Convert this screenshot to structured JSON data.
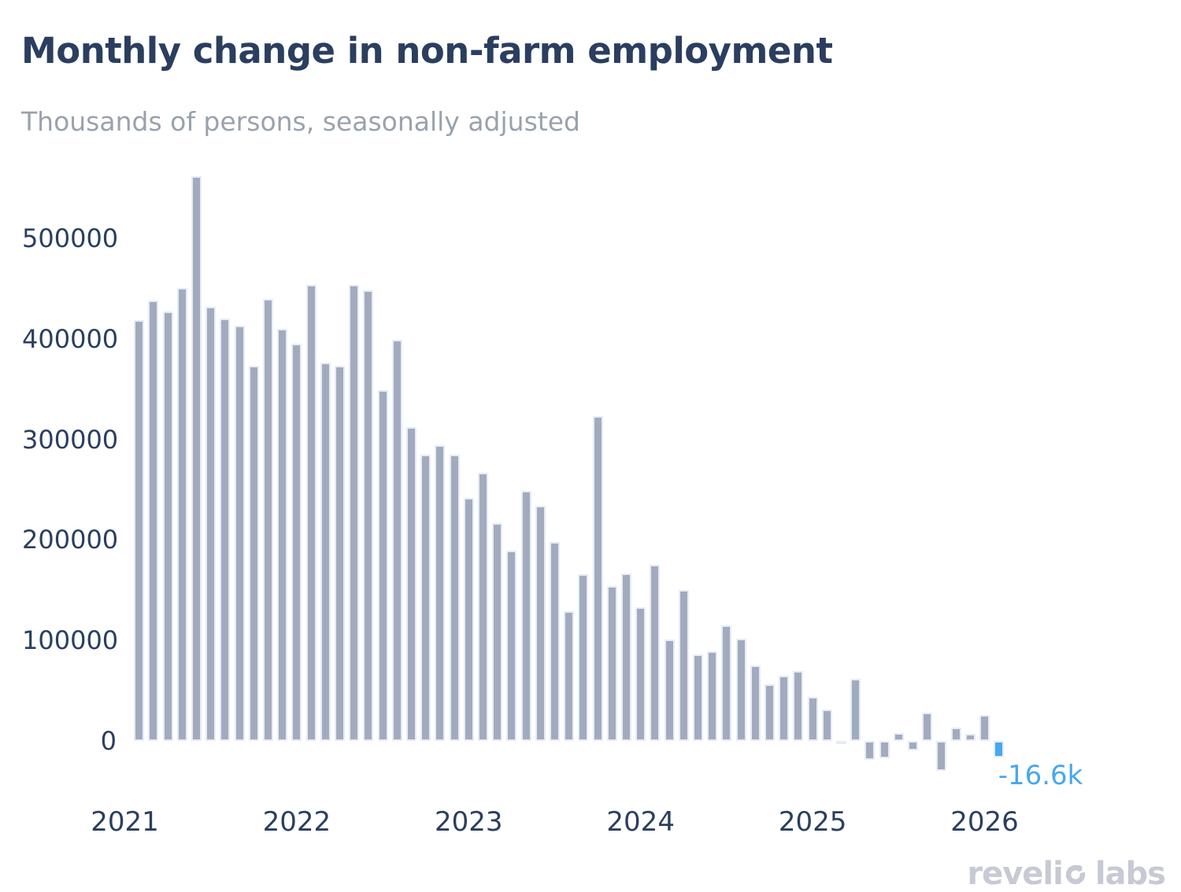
{
  "header": {
    "title": "Monthly change in non-farm employment",
    "subtitle": "Thousands of persons, seasonally adjusted"
  },
  "chart_data": {
    "type": "bar",
    "title": "Monthly change in non-farm employment",
    "subtitle": "Thousands of persons, seasonally adjusted",
    "xlabel": "",
    "ylabel": "",
    "grid": false,
    "legend": false,
    "ylim": [
      -45000,
      575000
    ],
    "yticks": [
      0,
      100000,
      200000,
      300000,
      400000,
      500000
    ],
    "xticks": [
      "2021",
      "2022",
      "2023",
      "2024",
      "2025",
      "2026"
    ],
    "x": [
      "2021-02",
      "2021-03",
      "2021-04",
      "2021-05",
      "2021-06",
      "2021-07",
      "2021-08",
      "2021-09",
      "2021-10",
      "2021-11",
      "2021-12",
      "2022-01",
      "2022-02",
      "2022-03",
      "2022-04",
      "2022-05",
      "2022-06",
      "2022-07",
      "2022-08",
      "2022-09",
      "2022-10",
      "2022-11",
      "2022-12",
      "2023-01",
      "2023-02",
      "2023-03",
      "2023-04",
      "2023-05",
      "2023-06",
      "2023-07",
      "2023-08",
      "2023-09",
      "2023-10",
      "2023-11",
      "2023-12",
      "2024-01",
      "2024-02",
      "2024-03",
      "2024-04",
      "2024-05",
      "2024-06",
      "2024-07",
      "2024-08",
      "2024-09",
      "2024-10",
      "2024-11",
      "2024-12",
      "2025-01",
      "2025-02",
      "2025-03",
      "2025-04",
      "2025-05",
      "2025-06",
      "2025-07",
      "2025-08",
      "2025-09",
      "2025-10",
      "2025-11",
      "2025-12",
      "2026-01",
      "2026-02"
    ],
    "values": [
      419000,
      438000,
      427000,
      451000,
      562000,
      432000,
      420000,
      413000,
      373000,
      440000,
      410000,
      395000,
      454000,
      376000,
      373000,
      454000,
      448000,
      349000,
      399000,
      312000,
      285000,
      294000,
      285000,
      242000,
      267000,
      217000,
      189000,
      249000,
      234000,
      198000,
      129000,
      166000,
      323000,
      154000,
      167000,
      133000,
      175000,
      101000,
      150000,
      86000,
      89000,
      115000,
      102000,
      75000,
      56000,
      65000,
      70000,
      44000,
      31000,
      -3000,
      62000,
      -19000,
      -17000,
      8000,
      -9000,
      28000,
      -30000,
      13000,
      7000,
      26000,
      -16600
    ],
    "bar_color": "#a2abbe",
    "bar_border_color": "#e6ecf6",
    "axis_label_color": "#2a3f5f",
    "highlight": {
      "month": "2026-02",
      "value": -16600,
      "color": "#46a8ee",
      "label": "-16.6k"
    }
  },
  "footer": {
    "logo_prefix": "reveli",
    "logo_suffix": "labs",
    "logo_full_name": "revelio labs"
  }
}
